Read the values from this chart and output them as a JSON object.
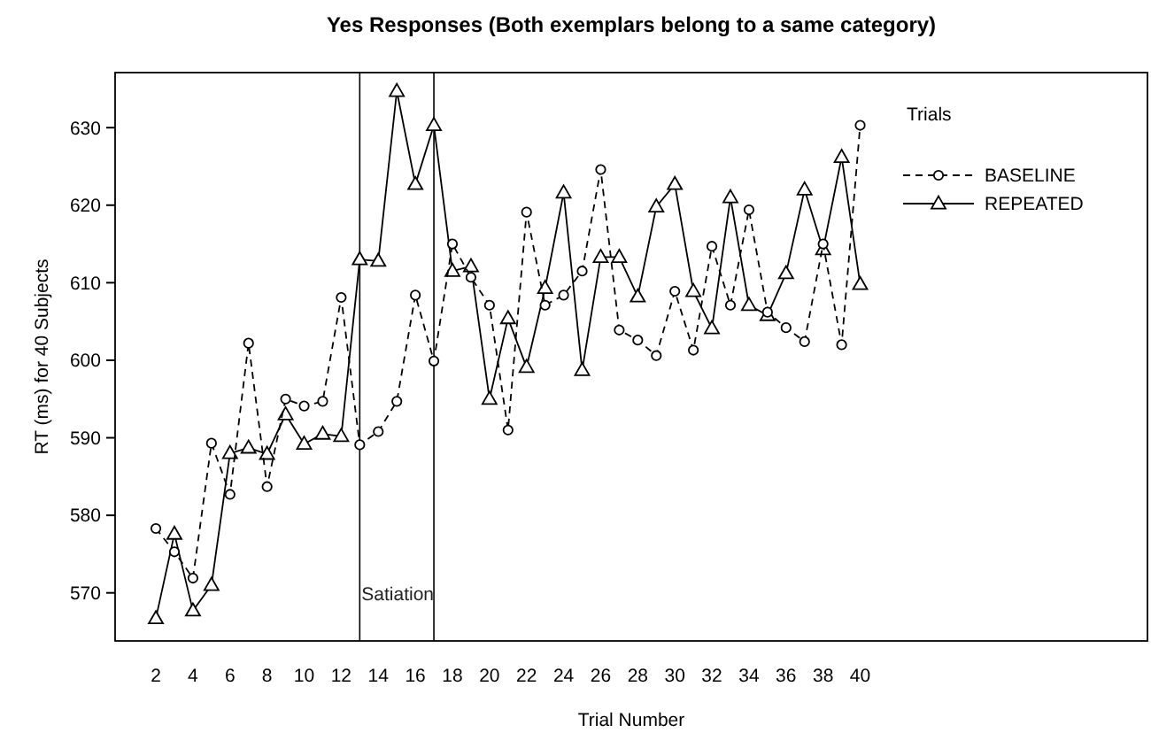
{
  "chart_data": {
    "type": "line",
    "title": "Yes Responses (Both exemplars belong to a same category)",
    "xlabel": "Trial Number",
    "ylabel": "RT (ms) for 40 Subjects",
    "legend_title": "Trials",
    "legend": "top right",
    "x": [
      2,
      3,
      4,
      5,
      6,
      7,
      8,
      9,
      10,
      11,
      12,
      13,
      14,
      15,
      16,
      17,
      18,
      19,
      20,
      21,
      22,
      23,
      24,
      25,
      26,
      27,
      28,
      29,
      30,
      31,
      32,
      33,
      34,
      35,
      36,
      37,
      38,
      39,
      40
    ],
    "series": [
      {
        "name": "BASELINE",
        "color": "#000000",
        "marker": "circle",
        "line_style": "dashed",
        "values": [
          578.3,
          575.3,
          571.9,
          589.3,
          582.7,
          602.2,
          583.7,
          595.0,
          594.1,
          594.7,
          608.1,
          589.1,
          590.8,
          594.7,
          608.4,
          599.9,
          615.0,
          610.7,
          607.1,
          591.0,
          619.1,
          607.1,
          608.4,
          611.5,
          624.6,
          603.9,
          602.6,
          600.6,
          608.9,
          601.3,
          614.7,
          607.1,
          619.4,
          606.2,
          604.2,
          602.4,
          615.0,
          602.0,
          630.3
        ]
      },
      {
        "name": "REPEATED",
        "color": "#000000",
        "marker": "triangle",
        "line_style": "solid",
        "values": [
          566.7,
          577.6,
          567.7,
          571.0,
          588.0,
          588.7,
          587.9,
          593.0,
          589.2,
          590.5,
          590.2,
          613.0,
          612.8,
          634.7,
          622.7,
          630.3,
          611.5,
          612.1,
          595.0,
          605.4,
          599.1,
          609.3,
          621.6,
          598.7,
          613.3,
          613.3,
          608.2,
          619.8,
          622.7,
          608.9,
          604.1,
          621.0,
          607.1,
          605.8,
          611.2,
          622.0,
          614.3,
          626.2,
          609.8
        ]
      }
    ],
    "xlim": [
      -0.2,
      55.5
    ],
    "xticks": [
      2,
      4,
      6,
      8,
      10,
      12,
      14,
      16,
      18,
      20,
      22,
      24,
      26,
      28,
      30,
      32,
      34,
      36,
      38,
      40
    ],
    "ylim": [
      563.8,
      637.1
    ],
    "yticks": [
      570,
      580,
      590,
      600,
      610,
      620,
      630
    ],
    "ref_lines": [
      {
        "axis": "x",
        "value": 13,
        "label": "Satiation"
      },
      {
        "axis": "x",
        "value": 17
      }
    ],
    "grid": false
  }
}
